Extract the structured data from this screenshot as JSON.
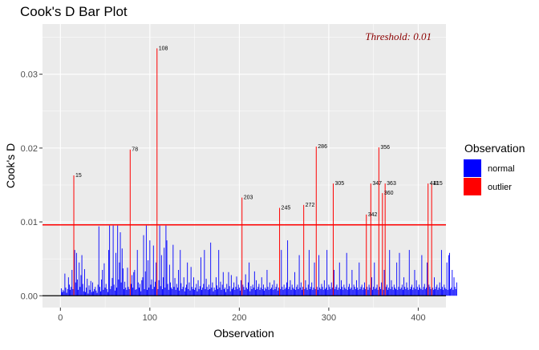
{
  "chart_data": {
    "type": "bar",
    "title": "Cook's D Bar Plot",
    "xlabel": "Observation",
    "ylabel": "Cook's D",
    "xlim": [
      -20,
      431
    ],
    "ylim": [
      -0.0016,
      0.0368
    ],
    "x_ticks": [
      0,
      100,
      200,
      300,
      400
    ],
    "y_ticks": [
      0.0,
      0.01,
      0.02,
      0.03
    ],
    "y_tick_labels": [
      "0.00",
      "0.01",
      "0.02",
      "0.03"
    ],
    "grid": true,
    "threshold": 0.0096,
    "threshold_annotation": "Threshold: 0.01",
    "legend": {
      "title": "Observation",
      "position": "right",
      "entries": [
        {
          "label": "normal",
          "color": "#0000ff"
        },
        {
          "label": "outlier",
          "color": "#ff0000"
        }
      ]
    },
    "outliers": [
      {
        "x": 15,
        "y": 0.0163,
        "label": "15"
      },
      {
        "x": 78,
        "y": 0.0198,
        "label": "78"
      },
      {
        "x": 108,
        "y": 0.0335,
        "label": "108"
      },
      {
        "x": 203,
        "y": 0.0133,
        "label": "203"
      },
      {
        "x": 245,
        "y": 0.0119,
        "label": "245"
      },
      {
        "x": 272,
        "y": 0.0123,
        "label": "272"
      },
      {
        "x": 286,
        "y": 0.0202,
        "label": "286"
      },
      {
        "x": 305,
        "y": 0.0152,
        "label": "305"
      },
      {
        "x": 342,
        "y": 0.011,
        "label": "342"
      },
      {
        "x": 347,
        "y": 0.0152,
        "label": "347"
      },
      {
        "x": 356,
        "y": 0.0201,
        "label": "356"
      },
      {
        "x": 360,
        "y": 0.0139,
        "label": "360"
      },
      {
        "x": 363,
        "y": 0.0152,
        "label": "363"
      },
      {
        "x": 411,
        "y": 0.0152,
        "label": "411"
      },
      {
        "x": 415,
        "y": 0.0152,
        "label": "415"
      }
    ],
    "normal_series": {
      "x_start": 1,
      "values": [
        0.001,
        0.0005,
        0.0008,
        0.0006,
        0.003,
        0.0011,
        0.0004,
        0.0009,
        0.0025,
        0.0015,
        0.0008,
        0.0012,
        0.0035,
        0.0009,
        0.0009,
        0.0062,
        0.0018,
        0.0058,
        0.0022,
        0.0008,
        0.0045,
        0.0012,
        0.0028,
        0.0055,
        0.0016,
        0.0006,
        0.0036,
        0.0005,
        0.0011,
        0.0023,
        0.0003,
        0.0014,
        0.0008,
        0.002,
        0.0005,
        0.0018,
        0.0006,
        0.0009,
        0.0012,
        0.0007,
        0.0004,
        0.0015,
        0.0094,
        0.0012,
        0.0006,
        0.0022,
        0.0035,
        0.0008,
        0.0044,
        0.0011,
        0.0016,
        0.0009,
        0.0005,
        0.0062,
        0.0095,
        0.0009,
        0.0013,
        0.0024,
        0.0095,
        0.0015,
        0.0007,
        0.0058,
        0.0011,
        0.0095,
        0.0022,
        0.0045,
        0.0086,
        0.0018,
        0.0064,
        0.0037,
        0.0009,
        0.0019,
        0.0011,
        0.0008,
        0.0038,
        0.0012,
        0.0009,
        0.0068,
        0.0016,
        0.0028,
        0.0011,
        0.0032,
        0.0035,
        0.0008,
        0.0009,
        0.0062,
        0.0018,
        0.0011,
        0.0016,
        0.0006,
        0.0021,
        0.0025,
        0.0082,
        0.0009,
        0.0033,
        0.0095,
        0.0008,
        0.0048,
        0.0011,
        0.0075,
        0.0015,
        0.0022,
        0.0009,
        0.0068,
        0.0012,
        0.0019,
        0.0045,
        0.0008,
        0.0009,
        0.0021,
        0.0095,
        0.0013,
        0.0055,
        0.0009,
        0.0025,
        0.0065,
        0.0011,
        0.0095,
        0.0075,
        0.0016,
        0.0008,
        0.0042,
        0.0018,
        0.0011,
        0.0009,
        0.0069,
        0.0012,
        0.0024,
        0.0008,
        0.0016,
        0.0011,
        0.0035,
        0.0007,
        0.0062,
        0.0017,
        0.0009,
        0.0012,
        0.0025,
        0.0006,
        0.0011,
        0.0015,
        0.0045,
        0.0009,
        0.0018,
        0.0007,
        0.0039,
        0.0012,
        0.0009,
        0.0025,
        0.0008,
        0.0011,
        0.0016,
        0.0006,
        0.0021,
        0.0009,
        0.0013,
        0.0052,
        0.0008,
        0.0011,
        0.0016,
        0.0062,
        0.0009,
        0.0023,
        0.0012,
        0.0008,
        0.0015,
        0.0009,
        0.0072,
        0.0011,
        0.0018,
        0.0006,
        0.0011,
        0.0008,
        0.0025,
        0.0014,
        0.0009,
        0.0062,
        0.0011,
        0.0019,
        0.0008,
        0.0015,
        0.0032,
        0.0009,
        0.0011,
        0.0005,
        0.0016,
        0.0009,
        0.0032,
        0.0013,
        0.0006,
        0.0028,
        0.0009,
        0.0011,
        0.0018,
        0.0008,
        0.0012,
        0.0026,
        0.0009,
        0.0015,
        0.0011,
        0.0007,
        0.0021,
        0.0009,
        0.0015,
        0.0012,
        0.0008,
        0.0029,
        0.0011,
        0.0009,
        0.0018,
        0.0045,
        0.0006,
        0.0013,
        0.0009,
        0.0015,
        0.0011,
        0.0033,
        0.0008,
        0.0021,
        0.0009,
        0.0012,
        0.0016,
        0.0008,
        0.0011,
        0.0025,
        0.0009,
        0.0015,
        0.0007,
        0.0011,
        0.0009,
        0.0035,
        0.0012,
        0.0008,
        0.0018,
        0.0009,
        0.0011,
        0.0015,
        0.0008,
        0.0021,
        0.0009,
        0.0012,
        0.0016,
        0.0007,
        0.0011,
        0.0025,
        0.0009,
        0.0062,
        0.0012,
        0.0008,
        0.0015,
        0.0009,
        0.0011,
        0.0018,
        0.0075,
        0.0009,
        0.0012,
        0.0021,
        0.0008,
        0.0015,
        0.0011,
        0.0009,
        0.0032,
        0.0008,
        0.0012,
        0.0015,
        0.0009,
        0.0055,
        0.0011,
        0.0018,
        0.0008,
        0.0012,
        0.0045,
        0.0009,
        0.0021,
        0.0011,
        0.0008,
        0.0015,
        0.0062,
        0.0009,
        0.0012,
        0.0018,
        0.0008,
        0.0011,
        0.0045,
        0.0009,
        0.0015,
        0.0012,
        0.0008,
        0.0055,
        0.0011,
        0.0009,
        0.0016,
        0.0012,
        0.0008,
        0.0021,
        0.0009,
        0.0011,
        0.0062,
        0.0008,
        0.0015,
        0.0012,
        0.0009,
        0.0018,
        0.0011,
        0.0008,
        0.0035,
        0.0009,
        0.0012,
        0.0015,
        0.0008,
        0.0011,
        0.0045,
        0.0009,
        0.0021,
        0.0012,
        0.0008,
        0.0015,
        0.0011,
        0.0009,
        0.0058,
        0.0008,
        0.0012,
        0.0016,
        0.0009,
        0.0011,
        0.0035,
        0.0008,
        0.0015,
        0.0012,
        0.0009,
        0.0021,
        0.0011,
        0.0008,
        0.0045,
        0.0009,
        0.0012,
        0.0015,
        0.0008,
        0.0011,
        0.0018,
        0.0009,
        0.0062,
        0.0012,
        0.0008,
        0.0015,
        0.0011,
        0.0009,
        0.0025,
        0.0008,
        0.0012,
        0.0045,
        0.0009,
        0.0011,
        0.0015,
        0.0008,
        0.0058,
        0.0012,
        0.0009,
        0.0018,
        0.0011,
        0.0008,
        0.0035,
        0.0009,
        0.0012,
        0.0015,
        0.0008,
        0.0011,
        0.0062,
        0.0009,
        0.0021,
        0.0012,
        0.0008,
        0.0015,
        0.0011,
        0.0009,
        0.0045,
        0.0008,
        0.0012,
        0.0058,
        0.0009,
        0.0011,
        0.0015,
        0.0008,
        0.0025,
        0.0012,
        0.0009,
        0.0018,
        0.0011,
        0.0008,
        0.0062,
        0.0009,
        0.0012,
        0.0015,
        0.0008,
        0.0011,
        0.0035,
        0.0009,
        0.0021,
        0.0012,
        0.0008,
        0.0015,
        0.0011,
        0.0009,
        0.0055,
        0.0008,
        0.0012,
        0.0016,
        0.0009,
        0.0011,
        0.0045,
        0.0008,
        0.0015,
        0.0012,
        0.0009,
        0.0058,
        0.0011,
        0.0008,
        0.0025,
        0.0009,
        0.0012,
        0.0015,
        0.0008,
        0.0011,
        0.0018,
        0.0009,
        0.0062,
        0.0012,
        0.0008,
        0.0015,
        0.0011,
        0.0009,
        0.0045,
        0.0008,
        0.0055,
        0.0058,
        0.0009,
        0.0011,
        0.0035,
        0.0008,
        0.0025,
        0.0012,
        0.0009,
        0.0018
      ]
    }
  }
}
